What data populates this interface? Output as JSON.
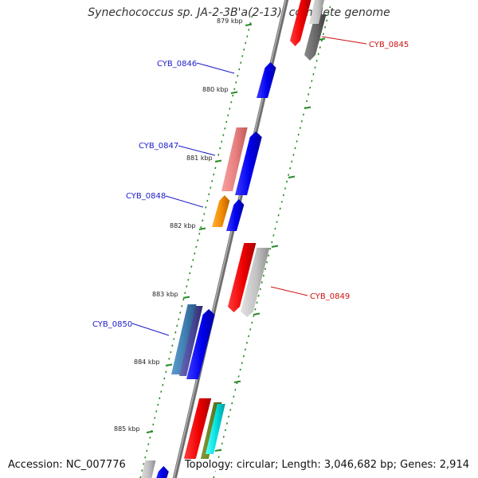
{
  "title": "Synechococcus sp. JA-2-3B'a(2-13), complete genome",
  "footer": {
    "accession": "Accession: NC_007776",
    "summary": "Topology: circular; Length: 3,046,682 bp; Genes: 2,914"
  },
  "colors": {
    "forward_label": "#1a1acc",
    "reverse_label": "#cc1111",
    "backbone": "#8a8a8a",
    "tick": "#2a8a2a"
  },
  "diagram": {
    "scale_labels": [
      "879 kbp",
      "880 kbp",
      "881 kbp",
      "882 kbp",
      "883 kbp",
      "884 kbp",
      "885 kbp"
    ],
    "gene_labels": [
      {
        "text": "CYB_0845",
        "strand": "reverse"
      },
      {
        "text": "CYB_0846",
        "strand": "forward"
      },
      {
        "text": "CYB_0847",
        "strand": "forward"
      },
      {
        "text": "CYB_0848",
        "strand": "forward"
      },
      {
        "text": "CYB_0849",
        "strand": "reverse"
      },
      {
        "text": "CYB_0850",
        "strand": "forward"
      }
    ]
  }
}
